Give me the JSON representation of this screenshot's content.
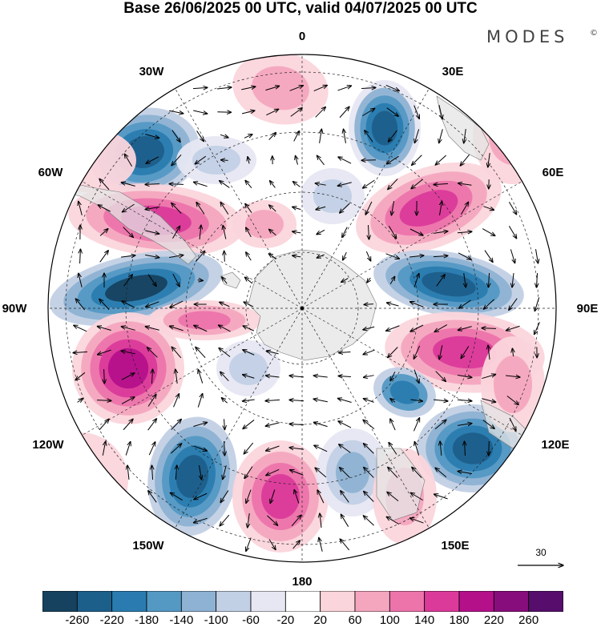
{
  "title": "Base 26/06/2025 00 UTC, valid 04/07/2025 00 UTC",
  "brand": {
    "name": "MODES",
    "mark": "©"
  },
  "map": {
    "projection": "south-polar-stereographic",
    "longitude_labels": [
      {
        "key": "lon-0",
        "text": "0"
      },
      {
        "key": "lon-30e",
        "text": "30E"
      },
      {
        "key": "lon-60e",
        "text": "60E"
      },
      {
        "key": "lon-90e",
        "text": "90E"
      },
      {
        "key": "lon-120e",
        "text": "120E"
      },
      {
        "key": "lon-150e",
        "text": "150E"
      },
      {
        "key": "lon-180",
        "text": "180"
      },
      {
        "key": "lon-150w",
        "text": "150W"
      },
      {
        "key": "lon-120w",
        "text": "120W"
      },
      {
        "key": "lon-90w",
        "text": "90W"
      },
      {
        "key": "lon-60w",
        "text": "60W"
      },
      {
        "key": "lon-30w",
        "text": "30W"
      }
    ],
    "reference_vector": {
      "label": "30"
    }
  },
  "colorbar": {
    "ticks": [
      "-260",
      "-220",
      "-180",
      "-140",
      "-100",
      "-60",
      "-20",
      "20",
      "60",
      "100",
      "140",
      "180",
      "220",
      "260"
    ],
    "colors": [
      "#16425f",
      "#1d5f8b",
      "#2a7cb0",
      "#5499c4",
      "#8eb2d3",
      "#c2d0e5",
      "#e6e7f2",
      "#ffffff",
      "#fbd5dc",
      "#f4a6bf",
      "#ec74ab",
      "#db3a9a",
      "#b4108a",
      "#870c7c",
      "#560d6c"
    ]
  },
  "icons": {
    "compass_ticks": "graticule",
    "vector_arrow": "arrow-icon"
  }
}
